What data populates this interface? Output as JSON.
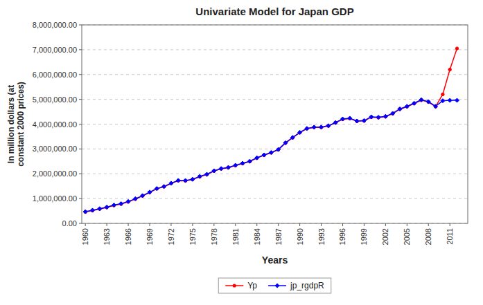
{
  "chart_data": {
    "type": "line",
    "title": "Univariate Model for Japan GDP",
    "xlabel": "Years",
    "ylabel": "In million dollars (at\nconstant 2000 prices)",
    "x": [
      1960,
      1961,
      1962,
      1963,
      1964,
      1965,
      1966,
      1967,
      1968,
      1969,
      1970,
      1971,
      1972,
      1973,
      1974,
      1975,
      1976,
      1977,
      1978,
      1979,
      1980,
      1981,
      1982,
      1983,
      1984,
      1985,
      1986,
      1987,
      1988,
      1989,
      1990,
      1991,
      1992,
      1993,
      1994,
      1995,
      1996,
      1997,
      1998,
      1999,
      2000,
      2001,
      2002,
      2003,
      2004,
      2005,
      2006,
      2007,
      2008,
      2009,
      2010,
      2011,
      2012
    ],
    "series": [
      {
        "name": "Yp",
        "color": "#FF0000",
        "marker": "circle",
        "line_style": "solid",
        "values": [
          460000,
          516000,
          579000,
          643000,
          724000,
          779000,
          869000,
          980000,
          1108000,
          1248000,
          1395000,
          1477000,
          1610000,
          1720000,
          1715000,
          1768000,
          1880000,
          1970000,
          2108000,
          2198000,
          2244000,
          2331000,
          2413000,
          2494000,
          2631000,
          2748000,
          2846000,
          2968000,
          3238000,
          3450000,
          3656000,
          3815000,
          3870000,
          3870000,
          3926000,
          4053000,
          4197000,
          4226000,
          4115000,
          4131000,
          4280000,
          4263000,
          4301000,
          4421000,
          4601000,
          4703000,
          4829000,
          4968000,
          4892000,
          4704000,
          5200000,
          6200000,
          7050000
        ]
      },
      {
        "name": "jp_rgdpR",
        "color": "#0000FF",
        "marker": "diamond",
        "line_style": "solid",
        "values": [
          472400,
          531600,
          592200,
          656200,
          737600,
          793000,
          882000,
          994000,
          1120000,
          1260000,
          1405000,
          1487000,
          1620000,
          1731000,
          1727000,
          1778000,
          1893000,
          1980000,
          2120000,
          2210000,
          2256000,
          2342000,
          2423000,
          2504000,
          2643000,
          2758000,
          2857000,
          2980000,
          3250000,
          3463000,
          3667000,
          3827000,
          3879000,
          3880000,
          3937000,
          4064000,
          4209000,
          4239000,
          4127000,
          4144000,
          4293000,
          4276000,
          4313000,
          4434000,
          4614000,
          4716000,
          4842000,
          4982000,
          4906000,
          4718000,
          4943000,
          4959000,
          4960000
        ]
      }
    ],
    "xlim": [
      1959.5,
      2013.5
    ],
    "xticks": [
      1960,
      1963,
      1966,
      1969,
      1972,
      1975,
      1978,
      1981,
      1984,
      1987,
      1990,
      1993,
      1996,
      1999,
      2002,
      2005,
      2008,
      2011
    ],
    "ylim": [
      0,
      8000000
    ],
    "yticks": [
      {
        "value": 0,
        "label": "0.00"
      },
      {
        "value": 1000000,
        "label": "1,000,000.00"
      },
      {
        "value": 2000000,
        "label": "2,000,000.00"
      },
      {
        "value": 3000000,
        "label": "3,000,000.00"
      },
      {
        "value": 4000000,
        "label": "4,000,000.00"
      },
      {
        "value": 5000000,
        "label": "5,000,000.00"
      },
      {
        "value": 6000000,
        "label": "6,000,000.00"
      },
      {
        "value": 7000000,
        "label": "7,000,000.00"
      },
      {
        "value": 8000000,
        "label": "8,000,000.00"
      }
    ],
    "grid": true,
    "legend": "bottom"
  }
}
